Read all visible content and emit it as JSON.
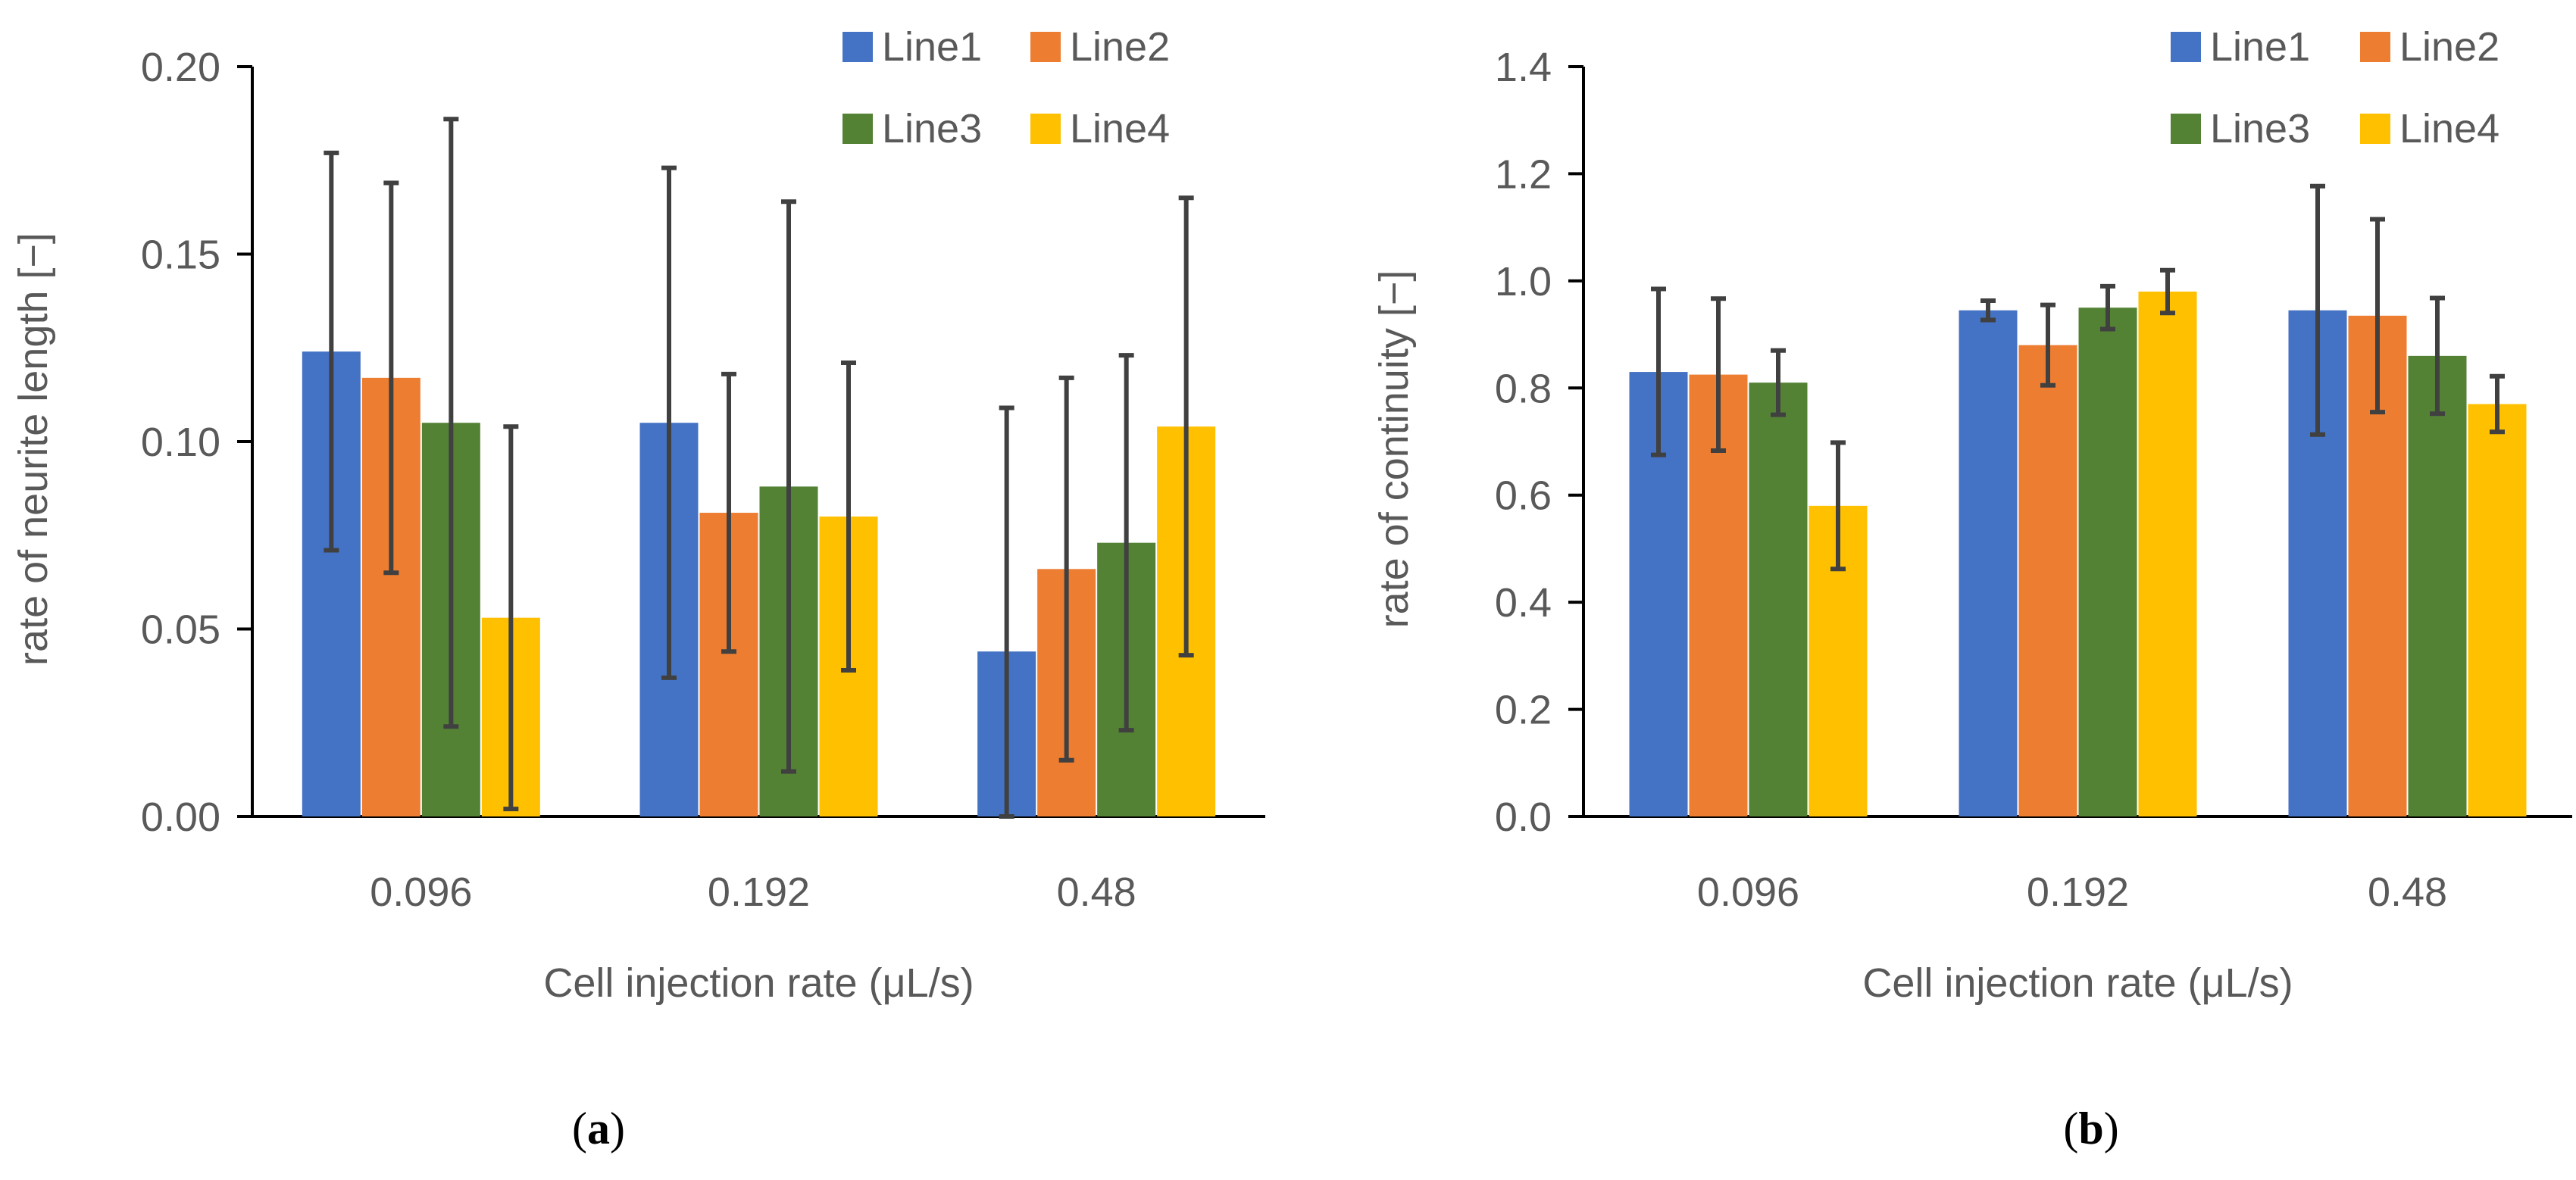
{
  "chart_data": [
    {
      "type": "bar",
      "panel_label": "a",
      "title": "",
      "categories": [
        "0.096",
        "0.192",
        "0.48"
      ],
      "xlabel": "Cell injection rate (μL/s)",
      "ylabel": "rate of neurite length [−]",
      "ylim": [
        0,
        0.2
      ],
      "yticks": [
        "0.00",
        "0.05",
        "0.10",
        "0.15",
        "0.20"
      ],
      "legend_position": "top-right",
      "series": [
        {
          "name": "Line1",
          "color": "#4472C4",
          "values": [
            0.124,
            0.105,
            0.044
          ],
          "errors": [
            0.053,
            0.068,
            0.065
          ]
        },
        {
          "name": "Line2",
          "color": "#ED7D31",
          "values": [
            0.117,
            0.081,
            0.066
          ],
          "errors": [
            0.052,
            0.037,
            0.051
          ]
        },
        {
          "name": "Line3",
          "color": "#548235",
          "values": [
            0.105,
            0.088,
            0.073
          ],
          "errors": [
            0.081,
            0.076,
            0.05
          ]
        },
        {
          "name": "Line4",
          "color": "#FFC000",
          "values": [
            0.053,
            0.08,
            0.104
          ],
          "errors": [
            0.051,
            0.041,
            0.061
          ]
        }
      ]
    },
    {
      "type": "bar",
      "panel_label": "b",
      "title": "",
      "categories": [
        "0.096",
        "0.192",
        "0.48"
      ],
      "xlabel": "Cell injection rate (μL/s)",
      "ylabel": "rate of continuity [−]",
      "ylim": [
        0,
        1.4
      ],
      "yticks": [
        "0.0",
        "0.2",
        "0.4",
        "0.6",
        "0.8",
        "1.0",
        "1.2",
        "1.4"
      ],
      "legend_position": "top-right",
      "series": [
        {
          "name": "Line1",
          "color": "#4472C4",
          "values": [
            0.83,
            0.945,
            0.945
          ],
          "errors": [
            0.155,
            0.018,
            0.232
          ]
        },
        {
          "name": "Line2",
          "color": "#ED7D31",
          "values": [
            0.825,
            0.88,
            0.935
          ],
          "errors": [
            0.142,
            0.075,
            0.18
          ]
        },
        {
          "name": "Line3",
          "color": "#548235",
          "values": [
            0.81,
            0.95,
            0.86
          ],
          "errors": [
            0.06,
            0.04,
            0.108
          ]
        },
        {
          "name": "Line4",
          "color": "#FFC000",
          "values": [
            0.58,
            0.98,
            0.77
          ],
          "errors": [
            0.118,
            0.04,
            0.052
          ]
        }
      ]
    }
  ]
}
